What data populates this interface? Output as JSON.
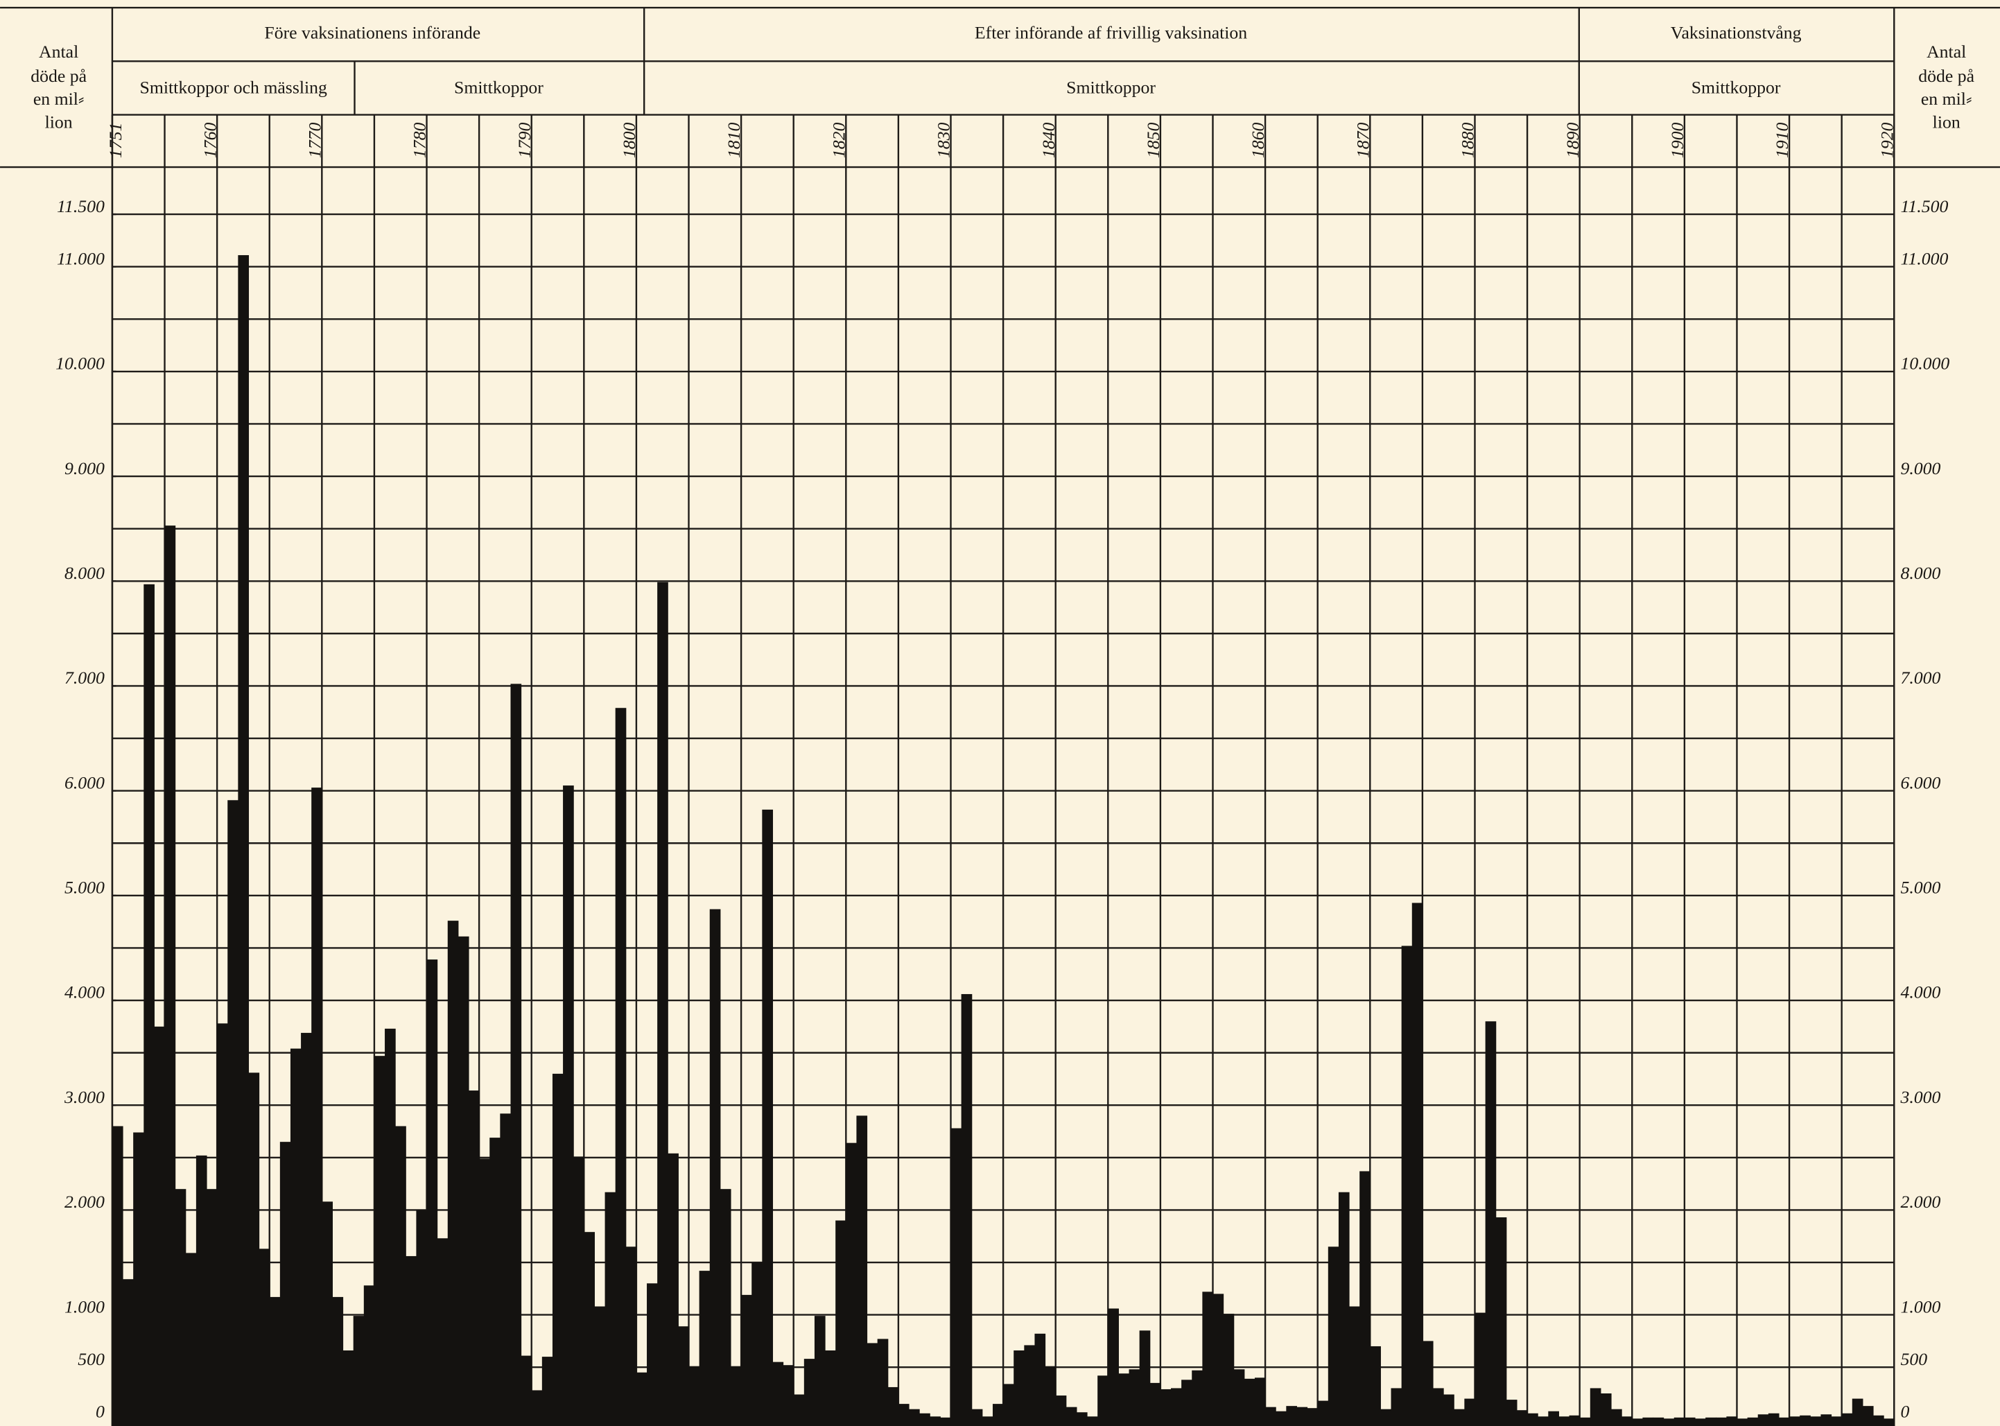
{
  "chart_data": {
    "type": "bar",
    "header_groups": [
      "Före vaksinationens införande",
      "Efter införande af frivillig vaksination",
      "Vaksinationstvång"
    ],
    "header_subgroups": [
      "Smittkoppor och mässling",
      "Smittkoppor",
      "Smittkoppor",
      "Smittkoppor"
    ],
    "y_label": [
      "Antal",
      "döde på",
      "en mil⸗",
      "lion"
    ],
    "x": [
      1751,
      1752,
      1753,
      1754,
      1755,
      1756,
      1757,
      1758,
      1759,
      1760,
      1761,
      1762,
      1763,
      1764,
      1765,
      1766,
      1767,
      1768,
      1769,
      1770,
      1771,
      1772,
      1773,
      1774,
      1775,
      1776,
      1777,
      1778,
      1779,
      1780,
      1781,
      1782,
      1783,
      1784,
      1785,
      1786,
      1787,
      1788,
      1789,
      1790,
      1791,
      1792,
      1793,
      1794,
      1795,
      1796,
      1797,
      1798,
      1799,
      1800,
      1801,
      1802,
      1803,
      1804,
      1805,
      1806,
      1807,
      1808,
      1809,
      1810,
      1811,
      1812,
      1813,
      1814,
      1815,
      1816,
      1817,
      1818,
      1819,
      1820,
      1821,
      1822,
      1823,
      1824,
      1825,
      1826,
      1827,
      1828,
      1829,
      1830,
      1831,
      1832,
      1833,
      1834,
      1835,
      1836,
      1837,
      1838,
      1839,
      1840,
      1841,
      1842,
      1843,
      1844,
      1845,
      1846,
      1847,
      1848,
      1849,
      1850,
      1851,
      1852,
      1853,
      1854,
      1855,
      1856,
      1857,
      1858,
      1859,
      1860,
      1861,
      1862,
      1863,
      1864,
      1865,
      1866,
      1867,
      1868,
      1869,
      1870,
      1871,
      1872,
      1873,
      1874,
      1875,
      1876,
      1877,
      1878,
      1879,
      1880,
      1881,
      1882,
      1883,
      1884,
      1885,
      1886,
      1887,
      1888,
      1889,
      1890,
      1891,
      1892,
      1893,
      1894,
      1895,
      1896,
      1897,
      1898,
      1899,
      1900,
      1901,
      1902,
      1903,
      1904,
      1905,
      1906,
      1907,
      1908,
      1909,
      1910,
      1911,
      1912,
      1913,
      1914,
      1915,
      1916,
      1917,
      1918,
      1919,
      1920
    ],
    "values": [
      2800,
      1340,
      2740,
      7970,
      3750,
      8530,
      2200,
      1590,
      2520,
      2200,
      3780,
      5910,
      11110,
      3310,
      1630,
      1170,
      2650,
      3540,
      3690,
      6030,
      2080,
      1170,
      660,
      990,
      1280,
      3470,
      3730,
      2800,
      1560,
      2000,
      4390,
      1730,
      4760,
      4610,
      3140,
      2490,
      2690,
      2920,
      7020,
      610,
      280,
      600,
      3300,
      6050,
      2510,
      1790,
      1080,
      2170,
      6790,
      1650,
      450,
      1300,
      7990,
      2540,
      890,
      510,
      1420,
      4870,
      2200,
      510,
      1190,
      1500,
      5820,
      550,
      520,
      240,
      580,
      990,
      660,
      1900,
      2640,
      2900,
      730,
      770,
      310,
      150,
      100,
      60,
      30,
      20,
      2780,
      4060,
      100,
      30,
      150,
      340,
      660,
      710,
      820,
      510,
      230,
      120,
      70,
      30,
      420,
      1060,
      440,
      480,
      850,
      350,
      290,
      300,
      380,
      470,
      1220,
      1200,
      1010,
      480,
      390,
      400,
      120,
      80,
      130,
      120,
      110,
      180,
      1650,
      2170,
      1080,
      2370,
      700,
      100,
      300,
      4520,
      4930,
      750,
      300,
      240,
      100,
      200,
      1020,
      3800,
      1930,
      190,
      90,
      60,
      30,
      80,
      30,
      40,
      20,
      300,
      250,
      100,
      30,
      10,
      20,
      20,
      10,
      20,
      20,
      10,
      20,
      20,
      30,
      10,
      20,
      50,
      60,
      20,
      30,
      40,
      30,
      50,
      30,
      60,
      200,
      130,
      40,
      10
    ],
    "color": "#141210",
    "xlim": [
      1751,
      1921
    ],
    "xticks": [
      1751,
      1760,
      1770,
      1780,
      1790,
      1800,
      1810,
      1820,
      1830,
      1840,
      1850,
      1860,
      1870,
      1880,
      1890,
      1900,
      1910,
      1920
    ],
    "xgrid_step": 5,
    "ylim": [
      0,
      11500
    ],
    "yticks": [
      0,
      500,
      {
        "value": 1000,
        "label": "1.000"
      },
      {
        "value": 2000,
        "label": "2.000"
      },
      {
        "value": 3000,
        "label": "3.000"
      },
      {
        "value": 4000,
        "label": "4.000"
      },
      {
        "value": 5000,
        "label": "5.000"
      },
      {
        "value": 6000,
        "label": "6.000"
      },
      {
        "value": 7000,
        "label": "7.000"
      },
      {
        "value": 8000,
        "label": "8.000"
      },
      {
        "value": 9000,
        "label": "9.000"
      },
      {
        "value": 10000,
        "label": "10.000"
      },
      {
        "value": 11000,
        "label": "11.000"
      },
      {
        "value": 11500,
        "label": "11.500"
      }
    ],
    "ygrid_step": 500,
    "grid": true
  }
}
